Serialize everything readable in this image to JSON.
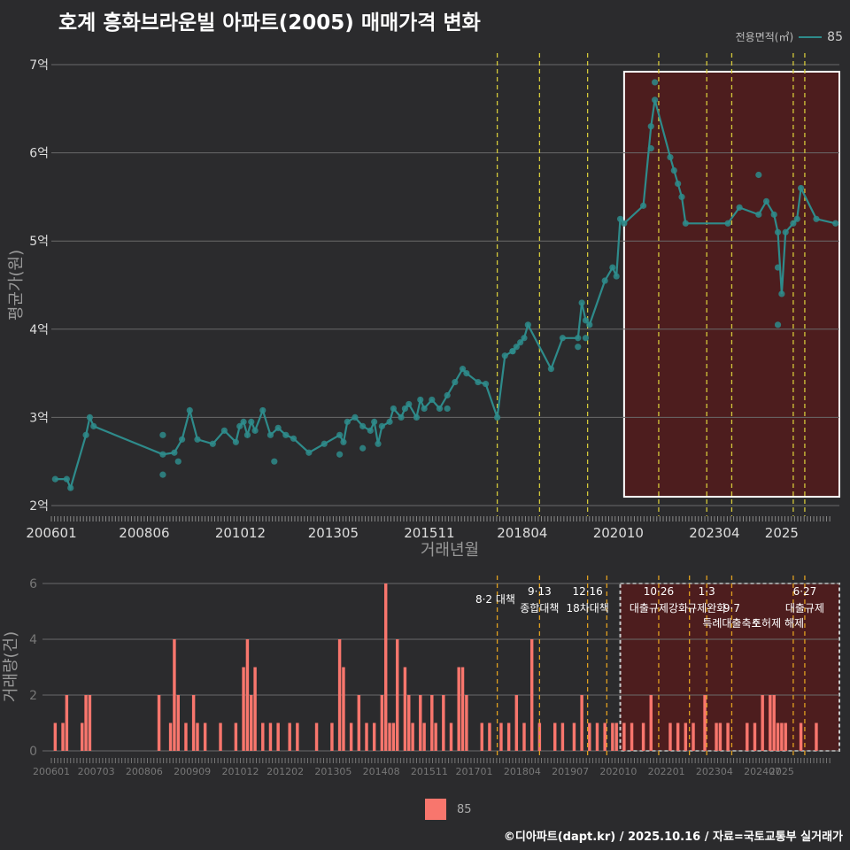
{
  "title": "호계 흥화브라운빌 아파트(2005) 매매가격 변화",
  "legend_top": {
    "label": "전용면적(㎡)",
    "value": "85"
  },
  "legend_bottom": {
    "value": "85"
  },
  "caption": "©디아파트(dapt.kr) / 2025.10.16 / 자료=국토교통부 실거래가",
  "colors": {
    "line": "#2e8b8b",
    "bar": "#f8766d",
    "policy": "#d4c83a",
    "highlight": "#5a1a1a"
  },
  "chart_data": [
    {
      "type": "line",
      "title": "호계 흥화브라운빌 아파트(2005) 매매가격 변화",
      "xlabel": "거래년월",
      "ylabel": "평균가(원)",
      "ylim": [
        2,
        7
      ],
      "yticks": [
        "2억",
        "3억",
        "4억",
        "5억",
        "6억",
        "7억"
      ],
      "xticks": [
        "200601",
        "200806",
        "201012",
        "201305",
        "201511",
        "201804",
        "202010",
        "202304",
        "2025"
      ],
      "series": [
        {
          "name": "85",
          "x": [
            2006.1,
            2006.4,
            2006.5,
            2006.9,
            2007.0,
            2007.1,
            2008.9,
            2009.2,
            2009.4,
            2009.6,
            2009.8,
            2010.2,
            2010.5,
            2010.8,
            2010.9,
            2011.0,
            2011.1,
            2011.2,
            2011.3,
            2011.5,
            2011.7,
            2011.9,
            2012.1,
            2012.3,
            2012.7,
            2013.1,
            2013.5,
            2013.6,
            2013.7,
            2013.9,
            2014.1,
            2014.3,
            2014.4,
            2014.5,
            2014.6,
            2014.8,
            2014.9,
            2015.1,
            2015.2,
            2015.3,
            2015.5,
            2015.6,
            2015.7,
            2015.9,
            2016.1,
            2016.3,
            2016.5,
            2016.7,
            2016.8,
            2017.1,
            2017.3,
            2017.6,
            2017.8,
            2018.0,
            2018.1,
            2018.2,
            2018.3,
            2018.4,
            2019.0,
            2019.3,
            2019.7,
            2019.8,
            2019.9,
            2020.0,
            2020.4,
            2020.6,
            2020.7,
            2020.8,
            2020.9,
            2021.4,
            2021.6,
            2021.7,
            2022.1,
            2022.2,
            2022.3,
            2022.4,
            2022.5,
            2023.6,
            2023.9,
            2024.4,
            2024.6,
            2024.8,
            2024.9,
            2025.0,
            2025.1,
            2025.3,
            2025.4,
            2025.5,
            2025.9,
            2026.4
          ],
          "values": [
            2.3,
            2.3,
            2.2,
            2.8,
            3.0,
            2.9,
            2.58,
            2.6,
            2.75,
            3.08,
            2.75,
            2.7,
            2.85,
            2.72,
            2.9,
            2.95,
            2.8,
            2.95,
            2.85,
            3.08,
            2.8,
            2.88,
            2.8,
            2.76,
            2.6,
            2.7,
            2.8,
            2.72,
            2.95,
            3.0,
            2.9,
            2.85,
            2.95,
            2.7,
            2.9,
            2.95,
            3.1,
            3.0,
            3.1,
            3.15,
            3.0,
            3.2,
            3.1,
            3.2,
            3.1,
            3.25,
            3.4,
            3.55,
            3.5,
            3.4,
            3.38,
            3.0,
            3.7,
            3.75,
            3.8,
            3.85,
            3.9,
            4.05,
            3.55,
            3.9,
            3.9,
            4.3,
            4.1,
            4.05,
            4.55,
            4.7,
            4.6,
            5.25,
            5.2,
            5.4,
            6.3,
            6.6,
            5.95,
            5.8,
            5.65,
            5.5,
            5.2,
            5.2,
            5.38,
            5.3,
            5.45,
            5.3,
            5.1,
            4.4,
            5.1,
            5.2,
            5.25,
            5.6,
            5.25,
            5.2
          ],
          "points_extra": [
            [
              2008.9,
              2.35
            ],
            [
              2008.9,
              2.8
            ],
            [
              2009.3,
              2.5
            ],
            [
              2011.8,
              2.5
            ],
            [
              2013.5,
              2.58
            ],
            [
              2014.1,
              2.65
            ],
            [
              2016.3,
              3.1
            ],
            [
              2018.0,
              3.75
            ],
            [
              2019.7,
              3.8
            ],
            [
              2019.9,
              3.9
            ],
            [
              2021.7,
              6.8
            ],
            [
              2021.6,
              6.05
            ],
            [
              2024.4,
              5.75
            ],
            [
              2024.9,
              4.05
            ],
            [
              2024.9,
              4.7
            ]
          ]
        }
      ],
      "policy_lines": [
        2017.6,
        2018.7,
        2019.95,
        2021.8,
        2023.05,
        2023.7,
        2025.3,
        2025.6
      ],
      "highlight": {
        "x": [
          2020.9,
          2026.5
        ],
        "y": [
          2.1,
          6.92
        ]
      }
    },
    {
      "type": "bar",
      "xlabel": "",
      "ylabel": "거래량(건)",
      "ylim": [
        0,
        6
      ],
      "yticks": [
        "0",
        "2",
        "4",
        "6"
      ],
      "xticks": [
        "200601",
        "200703",
        "200806",
        "200909",
        "201012",
        "201202",
        "201305",
        "201408",
        "201511",
        "201701",
        "201804",
        "201907",
        "202010",
        "202201",
        "202304",
        "202407",
        "2025"
      ],
      "bars": [
        [
          2006.1,
          1
        ],
        [
          2006.3,
          1
        ],
        [
          2006.4,
          2
        ],
        [
          2006.8,
          1
        ],
        [
          2006.9,
          2
        ],
        [
          2007.0,
          2
        ],
        [
          2008.8,
          2
        ],
        [
          2009.1,
          1
        ],
        [
          2009.2,
          4
        ],
        [
          2009.3,
          2
        ],
        [
          2009.5,
          1
        ],
        [
          2009.7,
          2
        ],
        [
          2009.8,
          1
        ],
        [
          2010.0,
          1
        ],
        [
          2010.4,
          1
        ],
        [
          2010.8,
          1
        ],
        [
          2011.0,
          3
        ],
        [
          2011.1,
          4
        ],
        [
          2011.2,
          2
        ],
        [
          2011.3,
          3
        ],
        [
          2011.5,
          1
        ],
        [
          2011.7,
          1
        ],
        [
          2011.9,
          1
        ],
        [
          2012.2,
          1
        ],
        [
          2012.4,
          1
        ],
        [
          2012.9,
          1
        ],
        [
          2013.3,
          1
        ],
        [
          2013.5,
          4
        ],
        [
          2013.6,
          3
        ],
        [
          2013.8,
          1
        ],
        [
          2014.0,
          2
        ],
        [
          2014.2,
          1
        ],
        [
          2014.4,
          1
        ],
        [
          2014.6,
          2
        ],
        [
          2014.7,
          6
        ],
        [
          2014.8,
          1
        ],
        [
          2014.9,
          1
        ],
        [
          2015.0,
          4
        ],
        [
          2015.2,
          3
        ],
        [
          2015.3,
          2
        ],
        [
          2015.4,
          1
        ],
        [
          2015.6,
          2
        ],
        [
          2015.7,
          1
        ],
        [
          2015.9,
          2
        ],
        [
          2016.0,
          1
        ],
        [
          2016.2,
          2
        ],
        [
          2016.4,
          1
        ],
        [
          2016.6,
          3
        ],
        [
          2016.7,
          3
        ],
        [
          2016.8,
          2
        ],
        [
          2017.2,
          1
        ],
        [
          2017.4,
          1
        ],
        [
          2017.7,
          1
        ],
        [
          2017.9,
          1
        ],
        [
          2018.1,
          2
        ],
        [
          2018.3,
          1
        ],
        [
          2018.5,
          4
        ],
        [
          2018.7,
          1
        ],
        [
          2019.1,
          1
        ],
        [
          2019.3,
          1
        ],
        [
          2019.6,
          1
        ],
        [
          2019.8,
          2
        ],
        [
          2020.0,
          1
        ],
        [
          2020.2,
          1
        ],
        [
          2020.4,
          1
        ],
        [
          2020.6,
          1
        ],
        [
          2020.7,
          1
        ],
        [
          2020.9,
          1
        ],
        [
          2021.1,
          1
        ],
        [
          2021.4,
          1
        ],
        [
          2021.6,
          2
        ],
        [
          2022.1,
          1
        ],
        [
          2022.3,
          1
        ],
        [
          2022.5,
          1
        ],
        [
          2022.7,
          1
        ],
        [
          2023.0,
          2
        ],
        [
          2023.3,
          1
        ],
        [
          2023.4,
          1
        ],
        [
          2023.6,
          1
        ],
        [
          2024.1,
          1
        ],
        [
          2024.3,
          1
        ],
        [
          2024.5,
          2
        ],
        [
          2024.7,
          2
        ],
        [
          2024.8,
          2
        ],
        [
          2024.9,
          1
        ],
        [
          2025.0,
          1
        ],
        [
          2025.1,
          1
        ],
        [
          2025.5,
          1
        ],
        [
          2025.9,
          1
        ]
      ],
      "policy_lines": [
        2017.6,
        2018.7,
        2019.95,
        2020.45,
        2021.8,
        2022.6,
        2023.05,
        2023.7,
        2025.3,
        2025.6
      ],
      "policy_labels": [
        {
          "x": 2017.55,
          "row": 1,
          "text": "8·2 대책"
        },
        {
          "x": 2018.7,
          "row": 0,
          "text": "9·13"
        },
        {
          "x": 2018.7,
          "row": 2,
          "text": "종합대책"
        },
        {
          "x": 2019.95,
          "row": 0,
          "text": "12·16"
        },
        {
          "x": 2019.95,
          "row": 2,
          "text": "18차대책"
        },
        {
          "x": 2021.8,
          "row": 0,
          "text": "10·26"
        },
        {
          "x": 2021.8,
          "row": 2,
          "text": "대출규제강화"
        },
        {
          "x": 2023.05,
          "row": 0,
          "text": "1·3"
        },
        {
          "x": 2023.05,
          "row": 2,
          "text": "규제완화"
        },
        {
          "x": 2023.7,
          "row": 2,
          "text": "9·7"
        },
        {
          "x": 2023.7,
          "row": 3,
          "text": "특례대출축소"
        },
        {
          "x": 2024.9,
          "row": 3,
          "text": "토허제 해제"
        },
        {
          "x": 2025.6,
          "row": 0,
          "text": "6·27"
        },
        {
          "x": 2025.6,
          "row": 2,
          "text": "대출규제"
        }
      ],
      "highlight": {
        "x": [
          2020.8,
          2026.5
        ],
        "y": [
          0,
          6
        ]
      }
    }
  ]
}
